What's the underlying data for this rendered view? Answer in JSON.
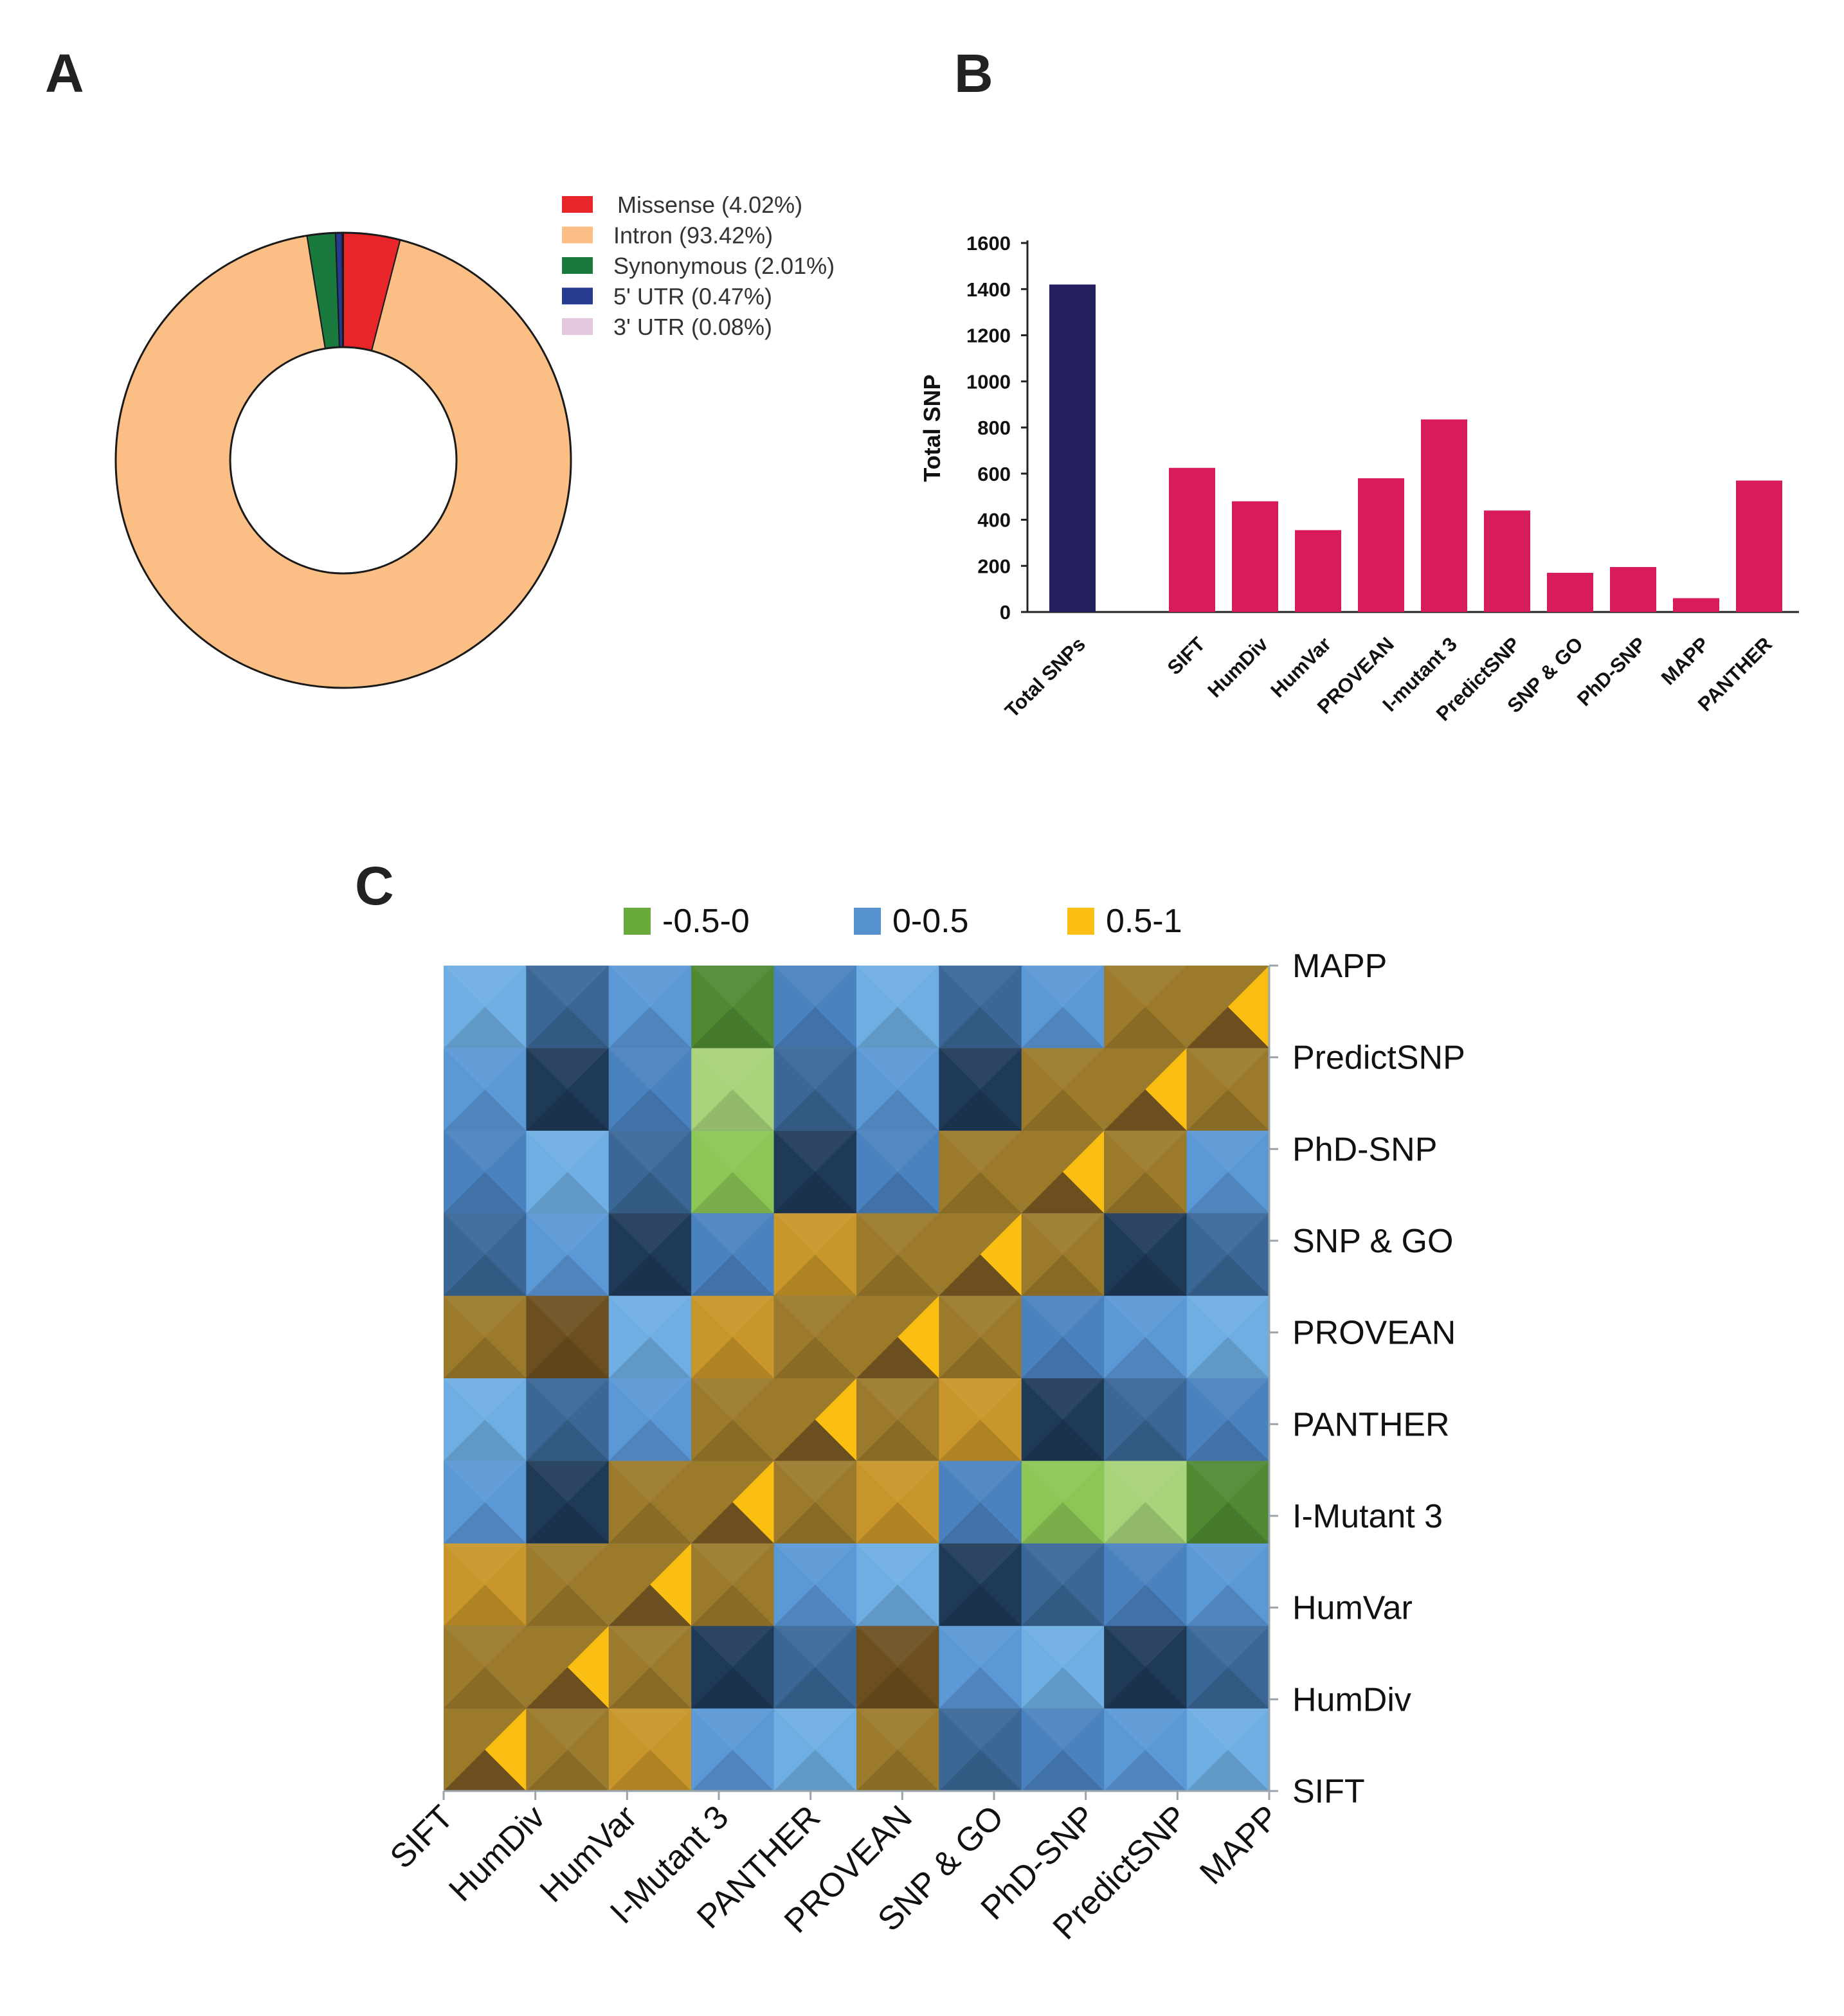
{
  "panels": {
    "a": "A",
    "b": "B",
    "c": "C"
  },
  "chart_data": [
    {
      "id": "A",
      "type": "pie",
      "title": "",
      "donut": true,
      "slices": [
        {
          "label": "Missense (4.02%)",
          "name": "Missense",
          "value": 4.02,
          "color": "#e8262a"
        },
        {
          "label": "Intron (93.42%)",
          "name": "Intron",
          "value": 93.42,
          "color": "#fbbf85"
        },
        {
          "label": "Synonymous (2.01%)",
          "name": "Synonymous",
          "value": 2.01,
          "color": "#1a7a3e"
        },
        {
          "label": "5' UTR (0.47%)",
          "name": "5' UTR",
          "value": 0.47,
          "color": "#263b8f"
        },
        {
          "label": "3' UTR (0.08%)",
          "name": "3' UTR",
          "value": 0.08,
          "color": "#e3c6e0"
        }
      ],
      "legend_position": "top-right"
    },
    {
      "id": "B",
      "type": "bar",
      "title": "",
      "ylabel": "Total SNP",
      "xlabel": "",
      "ylim": [
        0,
        1600
      ],
      "yticks": [
        "0",
        "200",
        "400",
        "600",
        "800",
        "1000",
        "1200",
        "1400",
        "1600"
      ],
      "categories": [
        "Total SNPs",
        "SIFT",
        "HumDiv",
        "HumVar",
        "PROVEAN",
        "I-mutant 3",
        "PredictSNP",
        "SNP & GO",
        "PhD-SNP",
        "MAPP",
        "PANTHER"
      ],
      "values": [
        1420,
        625,
        480,
        355,
        580,
        835,
        440,
        170,
        195,
        60,
        570
      ],
      "colors": [
        "#25205e",
        "#d81b5a",
        "#d81b5a",
        "#d81b5a",
        "#d81b5a",
        "#d81b5a",
        "#d81b5a",
        "#d81b5a",
        "#d81b5a",
        "#d81b5a",
        "#d81b5a"
      ]
    },
    {
      "id": "C",
      "type": "heatmap",
      "title": "",
      "x_labels": [
        "SIFT",
        "HumDiv",
        "HumVar",
        "I-Mutant 3",
        "PANTHER",
        "PROVEAN",
        "SNP & GO",
        "PhD-SNP",
        "PredictSNP",
        "MAPP"
      ],
      "y_labels": [
        "SIFT",
        "HumDiv",
        "HumVar",
        "I-Mutant 3",
        "PANTHER",
        "PROVEAN",
        "SNP & GO",
        "PhD-SNP",
        "PredictSNP",
        "MAPP"
      ],
      "legend": [
        {
          "label": "-0.5-0",
          "color": "#6aaa3c"
        },
        {
          "label": "0-0.5",
          "color": "#5592cf"
        },
        {
          "label": "0.5-1",
          "color": "#fbbe12"
        }
      ],
      "values": [
        [
          1.0,
          0.78,
          0.6,
          0.25,
          0.35,
          0.55,
          0.25,
          0.3,
          0.45,
          0.25
        ],
        [
          null,
          1.0,
          0.75,
          0.3,
          0.3,
          0.55,
          0.3,
          0.35,
          0.45,
          0.3
        ],
        [
          null,
          null,
          1.0,
          0.78,
          0.0,
          0.3,
          0.25,
          0.3,
          0.45,
          0.3
        ],
        [
          null,
          null,
          null,
          1.0,
          0.75,
          0.55,
          0.3,
          -0.35,
          -0.3,
          -0.3
        ],
        [
          null,
          null,
          null,
          null,
          1.0,
          0.75,
          0.55,
          0.1,
          0.1,
          0.15
        ],
        [
          null,
          null,
          null,
          null,
          null,
          1.0,
          0.78,
          0.3,
          0.25,
          0.2
        ],
        [
          null,
          null,
          null,
          null,
          null,
          null,
          1.0,
          0.75,
          0.35,
          0.2
        ],
        [
          null,
          null,
          null,
          null,
          null,
          null,
          null,
          1.0,
          0.75,
          0.35
        ],
        [
          null,
          null,
          null,
          null,
          null,
          null,
          null,
          null,
          1.0,
          0.75
        ],
        [
          null,
          null,
          null,
          null,
          null,
          null,
          null,
          null,
          null,
          1.0
        ]
      ]
    }
  ]
}
